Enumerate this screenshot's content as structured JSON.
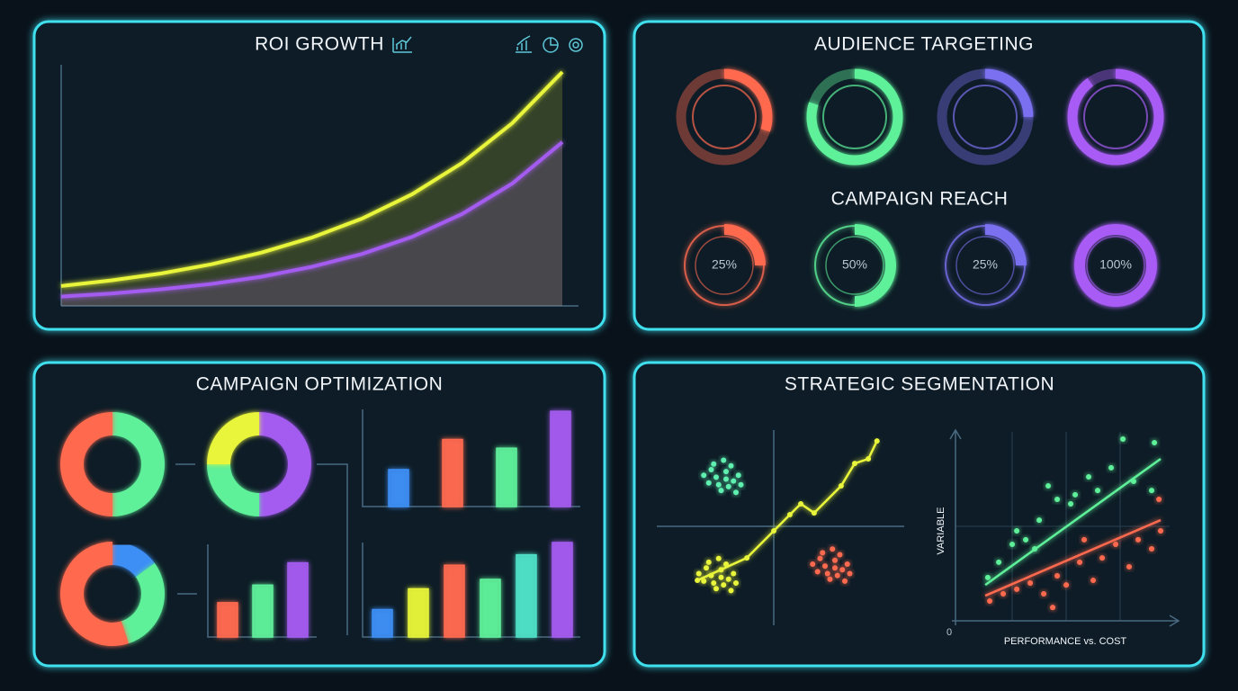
{
  "chart_data": [
    {
      "type": "line",
      "title": "ROI GROWTH",
      "x": [
        0,
        1,
        2,
        3,
        4,
        5,
        6,
        7,
        8,
        9,
        10
      ],
      "xlim": [
        0,
        10
      ],
      "ylim": [
        0,
        100
      ],
      "series": [
        {
          "color": "#e8f53a",
          "values": [
            8.5,
            10.9,
            13.9,
            17.8,
            22.8,
            29.2,
            37.3,
            47.7,
            61.1,
            78.1,
            100
          ]
        },
        {
          "color": "#a45cf0",
          "values": [
            4,
            5.3,
            7.1,
            9.4,
            12.5,
            16.7,
            22.2,
            29.5,
            39.3,
            52.3,
            70
          ]
        }
      ]
    },
    {
      "type": "ring",
      "title": "AUDIENCE TARGETING",
      "values": [
        30,
        80,
        25,
        90
      ],
      "colors": [
        "#ff6a50",
        "#5ef09a",
        "#7a70f0",
        "#a85cf5"
      ]
    },
    {
      "type": "gauge",
      "title": "CAMPAIGN REACH",
      "values": [
        25,
        50,
        25,
        100
      ],
      "value_labels": [
        "25%",
        "50%",
        "25%",
        "100%"
      ],
      "colors": [
        "#ff6a50",
        "#5ef09a",
        "#7a70f0",
        "#a85cf5"
      ]
    },
    {
      "type": "donut",
      "title": "CAMPAIGN OPTIMIZATION",
      "donuts": [
        {
          "values": [
            50,
            50
          ],
          "colors": [
            "#5ef09a",
            "#ff6a50"
          ]
        },
        {
          "values": [
            50,
            25,
            25
          ],
          "colors": [
            "#a45cf0",
            "#5ef09a",
            "#e8f53a"
          ]
        },
        {
          "values": [
            15,
            30,
            55
          ],
          "colors": [
            "#3d8ef5",
            "#5ef09a",
            "#ff6a50"
          ]
        }
      ]
    },
    {
      "type": "bar",
      "values": [
        38,
        69,
        60,
        98
      ],
      "colors": [
        "#3d8ef5",
        "#ff6a50",
        "#5ef09a",
        "#a45cf0"
      ],
      "ylim": [
        0,
        100
      ]
    },
    {
      "type": "bar",
      "values": [
        37,
        56,
        80
      ],
      "colors": [
        "#ff6a50",
        "#5ef09a",
        "#a45cf0"
      ],
      "ylim": [
        0,
        100
      ]
    },
    {
      "type": "bar",
      "values": [
        29,
        51,
        76,
        61,
        87,
        100
      ],
      "colors": [
        "#3d8ef5",
        "#e8f53a",
        "#ff6a50",
        "#5ef09a",
        "#4fe0c8",
        "#a45cf0"
      ],
      "ylim": [
        0,
        100
      ]
    },
    {
      "type": "scatter",
      "title": "STRATEGIC SEGMENTATION",
      "xlim": [
        0,
        100
      ],
      "ylim": [
        0,
        100
      ],
      "series": [
        {
          "color": "#5ef0b0",
          "x": [
            22,
            25,
            28,
            31,
            24,
            30,
            33,
            26,
            21,
            29,
            27,
            34,
            23,
            28,
            32,
            19
          ],
          "values": [
            80,
            72,
            79,
            74,
            76,
            82,
            77,
            69,
            73,
            71,
            85,
            72,
            83,
            75,
            68,
            77
          ]
        },
        {
          "color": "#e8f53a",
          "x": [
            20,
            23,
            26,
            29,
            22,
            28,
            31,
            24,
            19,
            27,
            25,
            32,
            21,
            26,
            30,
            17
          ],
          "values": [
            28,
            20,
            27,
            22,
            24,
            30,
            25,
            17,
            21,
            19,
            33,
            20,
            31,
            23,
            16,
            25
          ]
        },
        {
          "color": "#ff6a50",
          "x": [
            66,
            69,
            72,
            75,
            68,
            74,
            77,
            70,
            65,
            73,
            71,
            78,
            67,
            72,
            76,
            63
          ],
          "values": [
            33,
            25,
            32,
            27,
            29,
            35,
            30,
            22,
            26,
            24,
            38,
            25,
            36,
            28,
            21,
            30
          ]
        }
      ],
      "trendlines": [
        {
          "color": "#e8f53a",
          "x": [
            16.4,
            36.4,
            47.3,
            53.8,
            58.2,
            63.6,
            74.5,
            80,
            85.5,
            89
          ],
          "values": [
            21.4,
            33.3,
            47.6,
            56.2,
            61.9,
            57.1,
            71.4,
            83.3,
            85.7,
            95.2
          ]
        }
      ]
    },
    {
      "type": "scatter",
      "xlabel": "PERFORMANCE vs. COST",
      "ylabel": "VARIABLE",
      "xlim": [
        0,
        100
      ],
      "ylim": [
        0,
        100
      ],
      "yticks": [
        0
      ],
      "series": [
        {
          "color": "#5ef09a",
          "x": [
            15.1,
            20.2,
            26.5,
            28.6,
            32.8,
            39.1,
            43.3,
            47.5,
            53.8,
            55.9,
            62.2,
            66.4,
            72.7,
            78.2,
            83.2,
            92.9,
            91.6,
            37
          ],
          "values": [
            22.9,
            31,
            40.5,
            47.6,
            42.9,
            53.3,
            71.4,
            64.3,
            61.9,
            66.7,
            76.2,
            69,
            81,
            96.2,
            73.8,
            94.3,
            69,
            38.1
          ]
        },
        {
          "color": "#ff6a50",
          "x": [
            16,
            22.3,
            28.6,
            34.9,
            41.2,
            47.5,
            51.7,
            58,
            64.3,
            68.5,
            74.8,
            81.1,
            85.3,
            91.6,
            95,
            95.8,
            60.1,
            45.4
          ],
          "values": [
            10.5,
            14.3,
            16.7,
            20,
            14.3,
            23.8,
            19,
            31,
            21.4,
            33.3,
            40.5,
            28.6,
            42.9,
            38.1,
            64.3,
            47.6,
            42.9,
            7.1
          ]
        }
      ],
      "trendlines": [
        {
          "color": "#5ef09a",
          "x": [
            13.9,
            95.8
          ],
          "values": [
            19,
            85.7
          ]
        },
        {
          "color": "#ff6a50",
          "x": [
            13.9,
            95.8
          ],
          "values": [
            13.3,
            53.3
          ]
        }
      ]
    }
  ]
}
